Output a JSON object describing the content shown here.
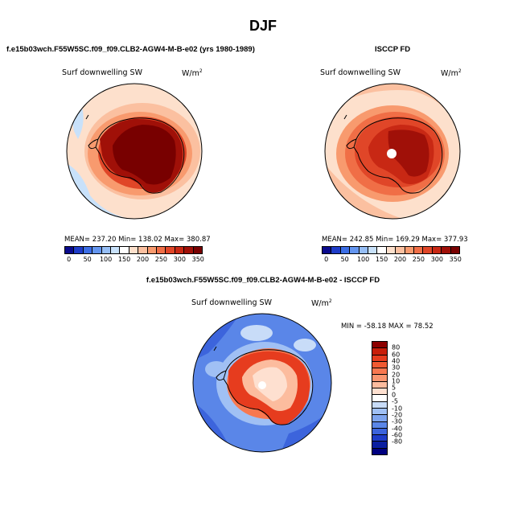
{
  "title": "DJF",
  "panels": {
    "model": {
      "case_title": "f.e15b03wch.F55W5SC.f09_f09.CLB2-AGW4-M-B-e02 (yrs 1980-1989)",
      "variable": "Surf downwelling SW",
      "units": "W/m",
      "units_exp": "2",
      "stats": "MEAN= 237.20  Min= 138.02  Max= 380.87"
    },
    "obs": {
      "case_title": "ISCCP FD",
      "variable": "Surf downwelling SW",
      "units": "W/m",
      "units_exp": "2",
      "stats": "MEAN= 242.85  Min= 169.29  Max= 377.93"
    },
    "diff": {
      "case_title": "f.e15b03wch.F55W5SC.f09_f09.CLB2-AGW4-M-B-e02 - ISCCP FD",
      "variable": "Surf downwelling SW",
      "units": "W/m",
      "units_exp": "2",
      "stats": "MIN = -58.18 MAX =  78.52"
    }
  },
  "abs_colorbar": {
    "ticks": [
      "0",
      "50",
      "100",
      "150",
      "200",
      "250",
      "300",
      "350"
    ],
    "colors": [
      "#0a0a8c",
      "#1e3cc8",
      "#3c6ee6",
      "#6496f0",
      "#96bef5",
      "#c8e1fa",
      "#ffffff",
      "#fde0cc",
      "#fbc0a0",
      "#f89a6e",
      "#f06e46",
      "#e04628",
      "#c82814",
      "#a01008",
      "#780000"
    ]
  },
  "diff_colorbar": {
    "ticks": [
      "80",
      "60",
      "40",
      "30",
      "20",
      "10",
      "5",
      "0",
      "-5",
      "-10",
      "-20",
      "-30",
      "-40",
      "-60",
      "-80"
    ],
    "colors": [
      "#8c0000",
      "#c81e0a",
      "#e63c1e",
      "#f05a32",
      "#f87850",
      "#fa9670",
      "#fcbc9e",
      "#fee0d0",
      "#ffffff",
      "#c8dcf8",
      "#a0c0f4",
      "#7ea4ee",
      "#5a86e8",
      "#3c64dc",
      "#1e3cc8",
      "#0a1ea0",
      "#000080"
    ]
  }
}
